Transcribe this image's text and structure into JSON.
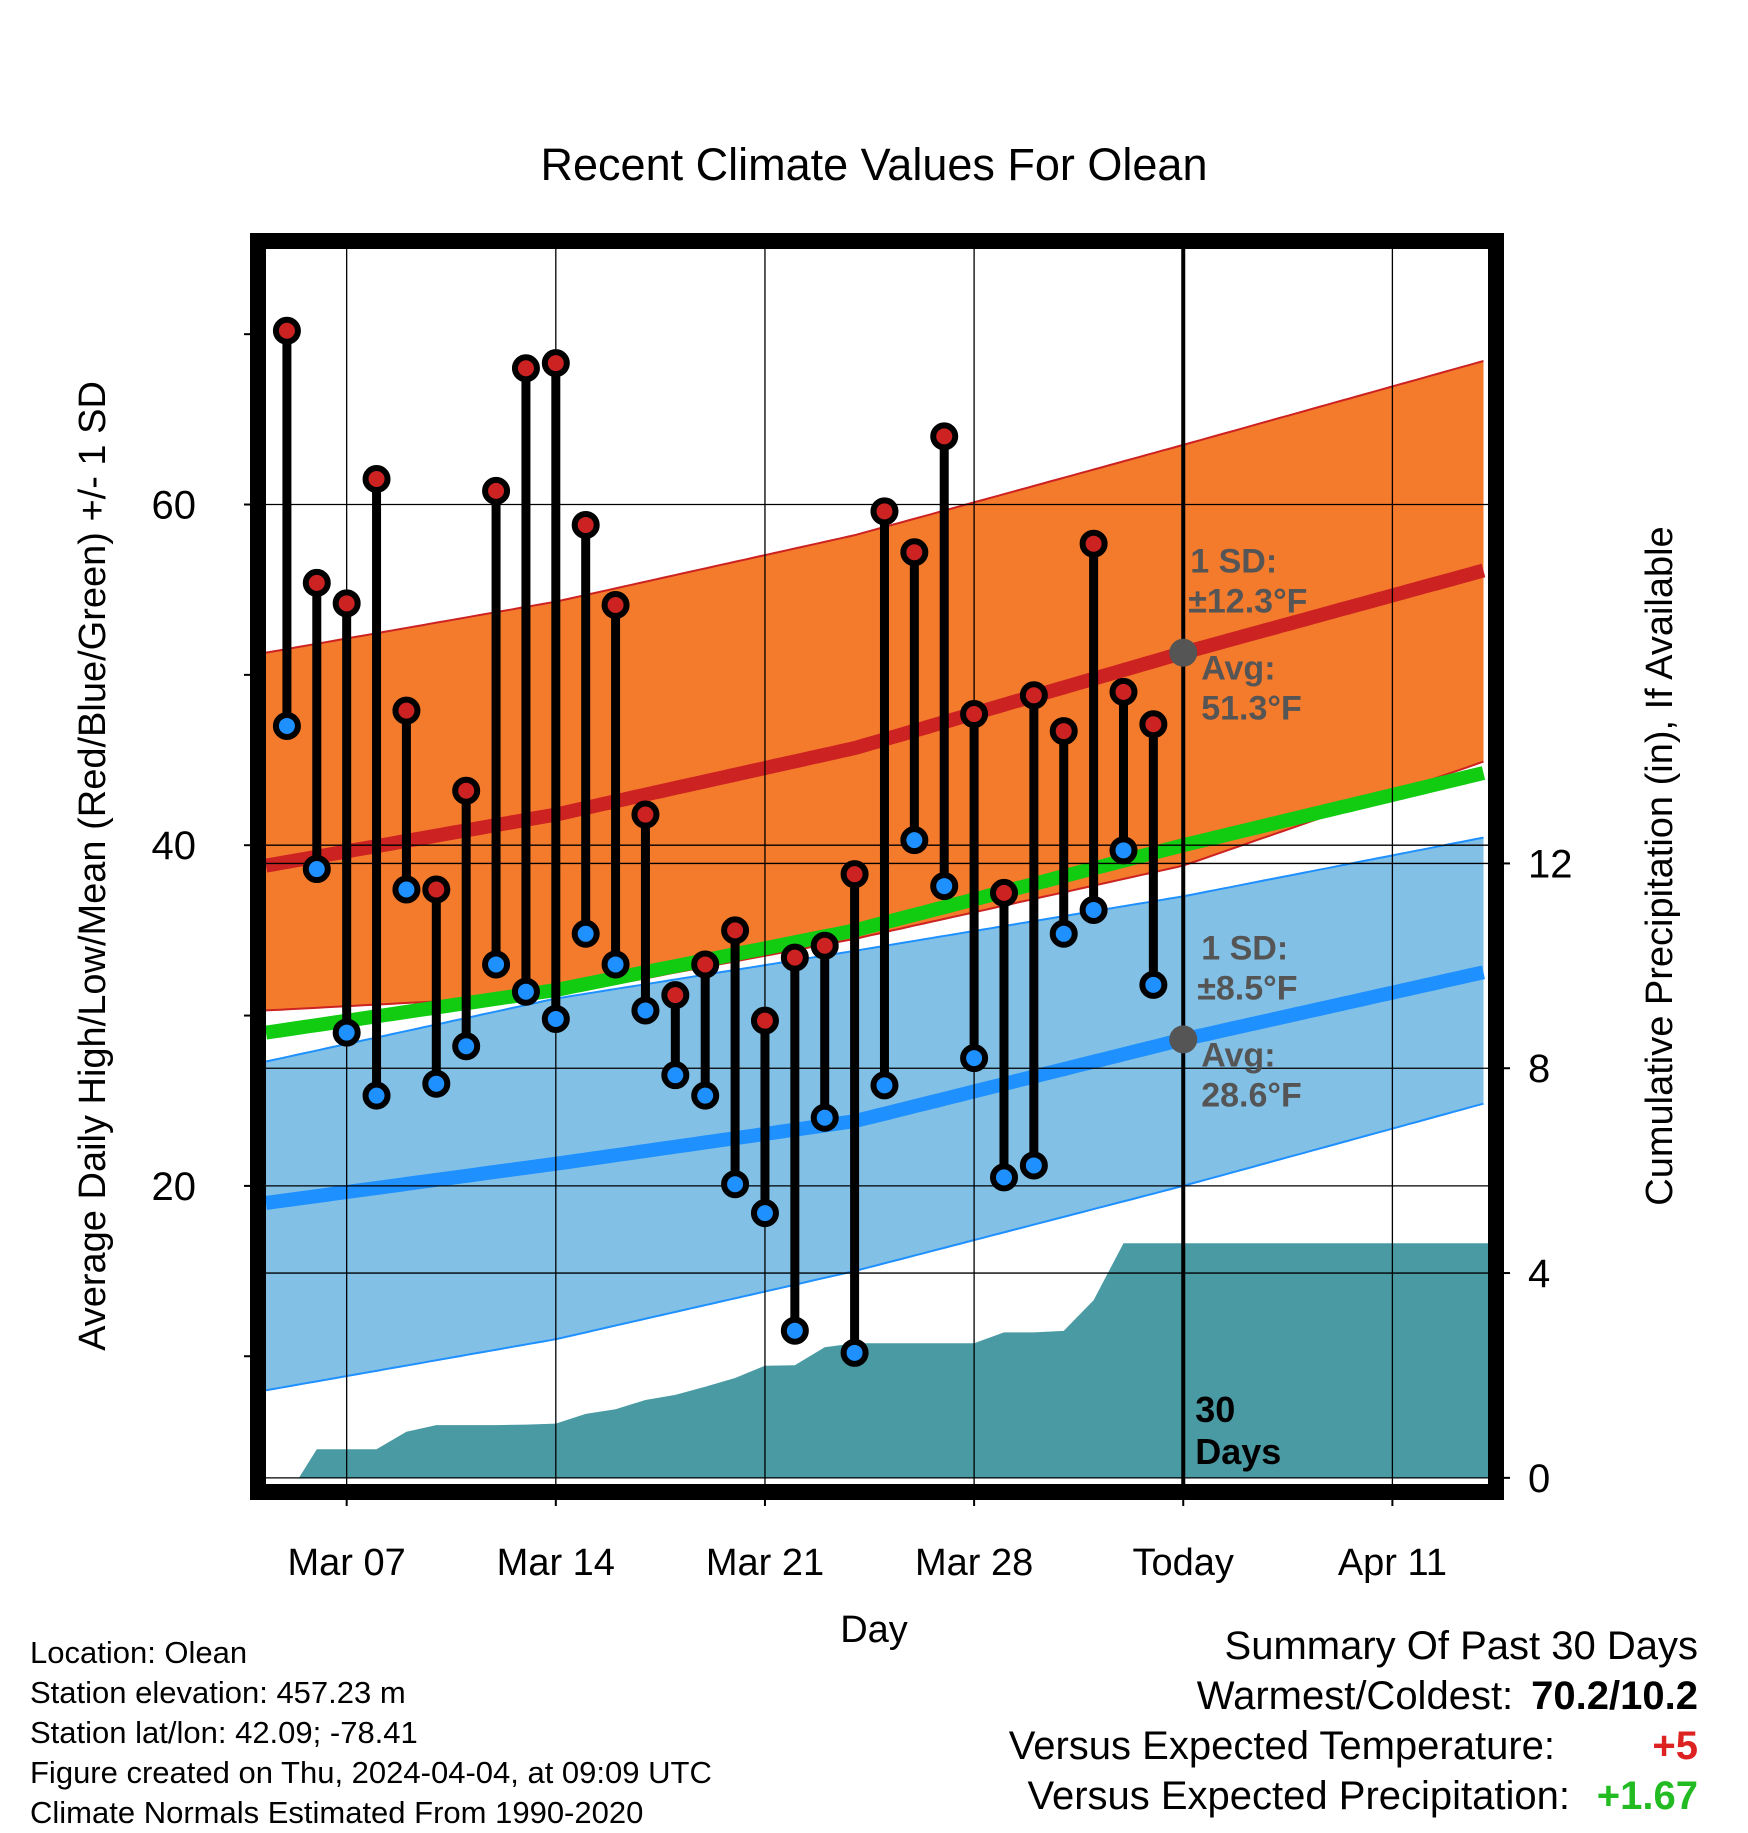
{
  "chart_data": {
    "type": "line",
    "title": "Recent Climate Values For Olean",
    "xlabel": "Day",
    "ylabel_left": "Average Daily High/Low/Mean (Red/Blue/Green) +/- 1 SD",
    "ylabel_right": "Cumulative Precipitation (in), If Available",
    "x_axis_start_date": "2024-03-04",
    "x_ticks": [
      {
        "day": 3,
        "label": "Mar 07"
      },
      {
        "day": 10,
        "label": "Mar 14"
      },
      {
        "day": 17,
        "label": "Mar 21"
      },
      {
        "day": 24,
        "label": "Mar 28"
      },
      {
        "day": 31,
        "label": "Today"
      },
      {
        "day": 38,
        "label": "Apr 11"
      }
    ],
    "xlim": [
      0.3,
      41.2
    ],
    "ylim_left": [
      2.5,
      75
    ],
    "y_ticks_left": [
      20,
      40,
      60
    ],
    "y_minor_ticks_left": [
      10,
      30,
      50,
      70
    ],
    "ylim_right": [
      -0.12,
      24.0
    ],
    "y_ticks_right": [
      0,
      4,
      8,
      12
    ],
    "grid": true,
    "today_day": 31,
    "normals": {
      "high_mean": {
        "x": [
          0.3,
          10,
          20,
          31,
          41.2
        ],
        "y": [
          38.8,
          41.8,
          45.7,
          51.3,
          56.2
        ]
      },
      "high_plus_sd": {
        "x": [
          0.3,
          10,
          20,
          31,
          41.2
        ],
        "y": [
          51.3,
          54.3,
          58.2,
          63.5,
          68.5
        ]
      },
      "high_minus_sd": {
        "x": [
          0.3,
          10,
          20,
          31,
          41.2
        ],
        "y": [
          30.3,
          31.2,
          34.5,
          38.8,
          45.0
        ]
      },
      "low_mean": {
        "x": [
          0.3,
          10,
          20,
          31,
          41.2
        ],
        "y": [
          19.0,
          21.3,
          23.8,
          28.6,
          32.6
        ]
      },
      "low_plus_sd": {
        "x": [
          0.3,
          10,
          20,
          31,
          41.2
        ],
        "y": [
          27.3,
          31.0,
          33.8,
          37.0,
          40.5
        ]
      },
      "low_minus_sd": {
        "x": [
          0.3,
          10,
          20,
          31,
          41.2
        ],
        "y": [
          8.0,
          11.0,
          15.0,
          20.0,
          24.9
        ]
      },
      "mean": {
        "x": [
          0.3,
          10,
          20,
          31,
          41.2
        ],
        "y": [
          29.0,
          31.5,
          35.0,
          40.0,
          44.3
        ]
      }
    },
    "daily_high": [
      70.2,
      55.4,
      54.2,
      61.5,
      47.9,
      37.4,
      43.2,
      60.8,
      68.0,
      68.3,
      58.8,
      54.1,
      41.8,
      31.2,
      33.0,
      35.0,
      29.7,
      33.4,
      34.1,
      38.3,
      59.6,
      57.2,
      64.0,
      47.7,
      37.2,
      48.8,
      46.7,
      57.7,
      49.0,
      47.1
    ],
    "daily_low": [
      47.0,
      38.6,
      29.0,
      25.3,
      37.4,
      26.0,
      28.2,
      33.0,
      31.4,
      29.8,
      34.8,
      33.0,
      30.3,
      26.5,
      25.3,
      20.1,
      18.4,
      11.5,
      24.0,
      10.2,
      25.9,
      40.3,
      37.6,
      27.5,
      20.5,
      21.2,
      34.8,
      36.2,
      39.7,
      31.8
    ],
    "cumulative_precip": {
      "x": [
        0.3,
        1.4,
        2,
        3,
        4,
        5,
        6,
        7,
        8,
        9,
        10,
        11,
        12,
        13,
        14,
        15,
        16,
        17,
        18,
        19,
        20,
        21,
        22,
        23,
        24,
        25,
        26,
        27,
        28,
        29,
        30,
        31,
        32,
        33,
        34,
        35,
        36,
        37,
        38,
        39,
        40,
        41.2
      ],
      "y": [
        0,
        0,
        0.56,
        0.56,
        0.56,
        0.9,
        1.03,
        1.03,
        1.03,
        1.04,
        1.06,
        1.25,
        1.34,
        1.52,
        1.62,
        1.78,
        1.95,
        2.19,
        2.2,
        2.55,
        2.63,
        2.63,
        2.63,
        2.63,
        2.63,
        2.84,
        2.84,
        2.87,
        3.47,
        4.58,
        4.58,
        4.58,
        4.58,
        4.58,
        4.58,
        4.58,
        4.58,
        4.58,
        4.58,
        4.58,
        4.58,
        4.58
      ]
    },
    "annotations": {
      "high_sd_label": "1 SD:",
      "high_sd_value": "±12.3°F",
      "high_avg_label": "Avg:",
      "high_avg_value": "51.3°F",
      "low_sd_label": "1 SD:",
      "low_sd_value": "±8.5°F",
      "low_avg_label": "Avg:",
      "low_avg_value": "28.6°F",
      "period_line1": "30",
      "period_line2": "Days"
    },
    "colors": {
      "high_band": "#f47a2c",
      "high_line": "#cc2222",
      "low_band": "#82c0e6",
      "low_line": "#1e90ff",
      "mean_line": "#11cc11",
      "precip": "#4a9aa4",
      "high_dot": "#cc2222",
      "low_dot": "#1e90ff",
      "annotation_text": "#555555"
    }
  },
  "metadata": {
    "location": "Location: Olean",
    "elevation": "Station elevation: 457.23 m",
    "latlon": "Station lat/lon: 42.09; -78.41",
    "created": "Figure created on Thu, 2024-04-04, at 09:09 UTC",
    "normals": "Climate Normals Estimated From 1990-2020"
  },
  "summary": {
    "title": "Summary Of Past 30 Days",
    "warmest_coldest_label": "Warmest/Coldest:",
    "warmest_coldest_value": "70.2/10.2",
    "temp_label": "Versus Expected Temperature:",
    "temp_value": "+5",
    "temp_color": "#dd2222",
    "precip_label": "Versus Expected Precipitation:",
    "precip_value": "+1.67",
    "precip_color": "#22bb22"
  }
}
